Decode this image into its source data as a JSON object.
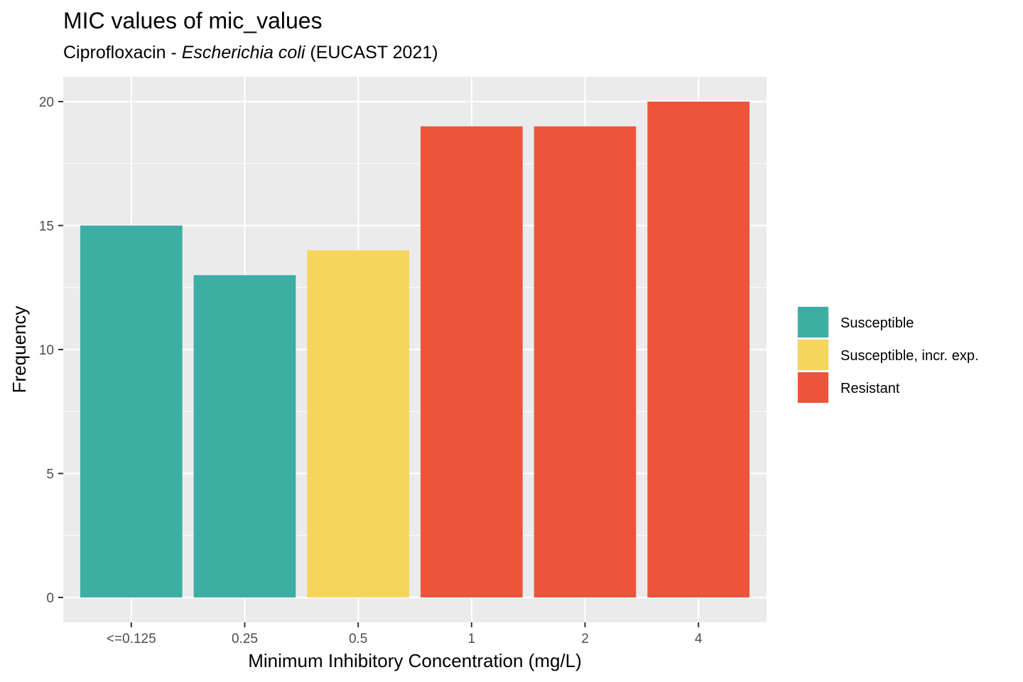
{
  "title": "MIC values of mic_values",
  "subtitle": {
    "prefix": "Ciprofloxacin - ",
    "italic": "Escherichia coli",
    "suffix": " (EUCAST 2021)"
  },
  "chart_data": {
    "type": "bar",
    "xlabel": "Minimum Inhibitory Concentration (mg/L)",
    "ylabel": "Frequency",
    "ylim": [
      0,
      21
    ],
    "y_ticks": [
      0,
      5,
      10,
      15,
      20
    ],
    "y_tick_labels": [
      "0",
      "5",
      "10",
      "15",
      "20"
    ],
    "categories": [
      "<=0.125",
      "0.25",
      "0.5",
      "1",
      "2",
      "4"
    ],
    "values": [
      15,
      13,
      14,
      19,
      19,
      20
    ],
    "interpretation": [
      "Susceptible",
      "Susceptible",
      "Susceptible, incr. exp.",
      "Resistant",
      "Resistant",
      "Resistant"
    ],
    "grid": true,
    "panel_background": "#ebebeb",
    "legend_position": "right",
    "legend": [
      {
        "label": "Susceptible",
        "color": "#3caea3"
      },
      {
        "label": "Susceptible, incr. exp.",
        "color": "#f6d55c"
      },
      {
        "label": "Resistant",
        "color": "#ed553b"
      }
    ]
  }
}
